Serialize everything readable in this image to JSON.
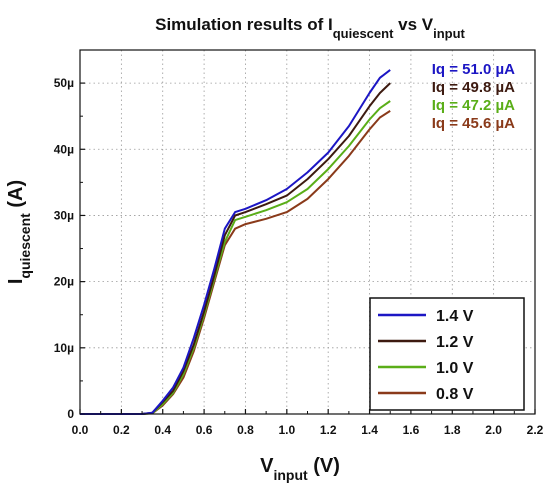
{
  "chart_data": {
    "type": "line",
    "title": {
      "prefix": "Simulation results of I",
      "sub1": "quiescent",
      "middle": " vs V",
      "sub2": "input"
    },
    "xlabel": {
      "main": "V",
      "sub": "input",
      "unit": " (V)"
    },
    "ylabel": {
      "main": "I",
      "sub": "quiescent",
      "unit": " (A)"
    },
    "xlim": [
      0,
      2.2
    ],
    "ylim": [
      0,
      55
    ],
    "x_ticks": [
      {
        "value": 0.0,
        "label": "0.0"
      },
      {
        "value": 0.2,
        "label": "0.2"
      },
      {
        "value": 0.4,
        "label": "0.4"
      },
      {
        "value": 0.6,
        "label": "0.6"
      },
      {
        "value": 0.8,
        "label": "0.8"
      },
      {
        "value": 1.0,
        "label": "1.0"
      },
      {
        "value": 1.2,
        "label": "1.2"
      },
      {
        "value": 1.4,
        "label": "1.4"
      },
      {
        "value": 1.6,
        "label": "1.6"
      },
      {
        "value": 1.8,
        "label": "1.8"
      },
      {
        "value": 2.0,
        "label": "2.0"
      },
      {
        "value": 2.2,
        "label": "2.2"
      }
    ],
    "y_ticks": [
      {
        "value": 0,
        "label": "0"
      },
      {
        "value": 10,
        "label": "10µ"
      },
      {
        "value": 20,
        "label": "20µ"
      },
      {
        "value": 30,
        "label": "30µ"
      },
      {
        "value": 40,
        "label": "40µ"
      },
      {
        "value": 50,
        "label": "50µ"
      }
    ],
    "grid": true,
    "legend_position": "bottom-right",
    "series": [
      {
        "name": "1.4 V",
        "color": "#1c16c4",
        "x": [
          0,
          0.3,
          0.35,
          0.4,
          0.45,
          0.5,
          0.55,
          0.6,
          0.65,
          0.7,
          0.75,
          0.8,
          0.9,
          1.0,
          1.1,
          1.2,
          1.3,
          1.4,
          1.45,
          1.5
        ],
        "y": [
          0,
          0,
          0.2,
          2.0,
          4.0,
          7.0,
          11.5,
          16.5,
          22.0,
          28.0,
          30.5,
          31.0,
          32.3,
          34.0,
          36.5,
          39.5,
          43.5,
          48.5,
          50.8,
          52.0
        ]
      },
      {
        "name": "1.2 V",
        "color": "#3d1a10",
        "x": [
          0,
          0.3,
          0.35,
          0.4,
          0.45,
          0.5,
          0.55,
          0.6,
          0.65,
          0.7,
          0.75,
          0.8,
          0.9,
          1.0,
          1.1,
          1.2,
          1.3,
          1.4,
          1.45,
          1.5
        ],
        "y": [
          0,
          0,
          0.2,
          1.8,
          3.5,
          6.5,
          10.5,
          15.5,
          21.0,
          27.0,
          30.0,
          30.5,
          31.7,
          33.0,
          35.5,
          38.5,
          42.0,
          46.5,
          48.5,
          50.0
        ]
      },
      {
        "name": "1.0 V",
        "color": "#5aae18",
        "x": [
          0,
          0.3,
          0.35,
          0.4,
          0.45,
          0.5,
          0.55,
          0.6,
          0.65,
          0.7,
          0.75,
          0.8,
          0.9,
          1.0,
          1.1,
          1.2,
          1.3,
          1.4,
          1.45,
          1.5
        ],
        "y": [
          0,
          0,
          0.1,
          1.5,
          3.2,
          6.0,
          10.0,
          15.0,
          20.5,
          26.0,
          29.3,
          29.8,
          30.8,
          32.0,
          34.0,
          37.0,
          40.5,
          44.5,
          46.2,
          47.3
        ]
      },
      {
        "name": "0.8 V",
        "color": "#8a3a1a",
        "x": [
          0,
          0.3,
          0.35,
          0.4,
          0.45,
          0.5,
          0.55,
          0.6,
          0.65,
          0.7,
          0.75,
          0.8,
          0.9,
          1.0,
          1.1,
          1.2,
          1.3,
          1.4,
          1.45,
          1.5
        ],
        "y": [
          0,
          0,
          0.1,
          1.3,
          3.0,
          5.5,
          9.5,
          14.5,
          20.0,
          25.5,
          28.0,
          28.7,
          29.5,
          30.5,
          32.5,
          35.5,
          39.0,
          43.0,
          44.8,
          45.8
        ]
      }
    ],
    "annotations": [
      {
        "text": "Iq = 51.0 µA",
        "color": "#1c16c4"
      },
      {
        "text": "Iq = 49.8 µA",
        "color": "#3d1a10"
      },
      {
        "text": "Iq = 47.2 µA",
        "color": "#5aae18"
      },
      {
        "text": "Iq = 45.6 µA",
        "color": "#8a3a1a"
      }
    ]
  }
}
